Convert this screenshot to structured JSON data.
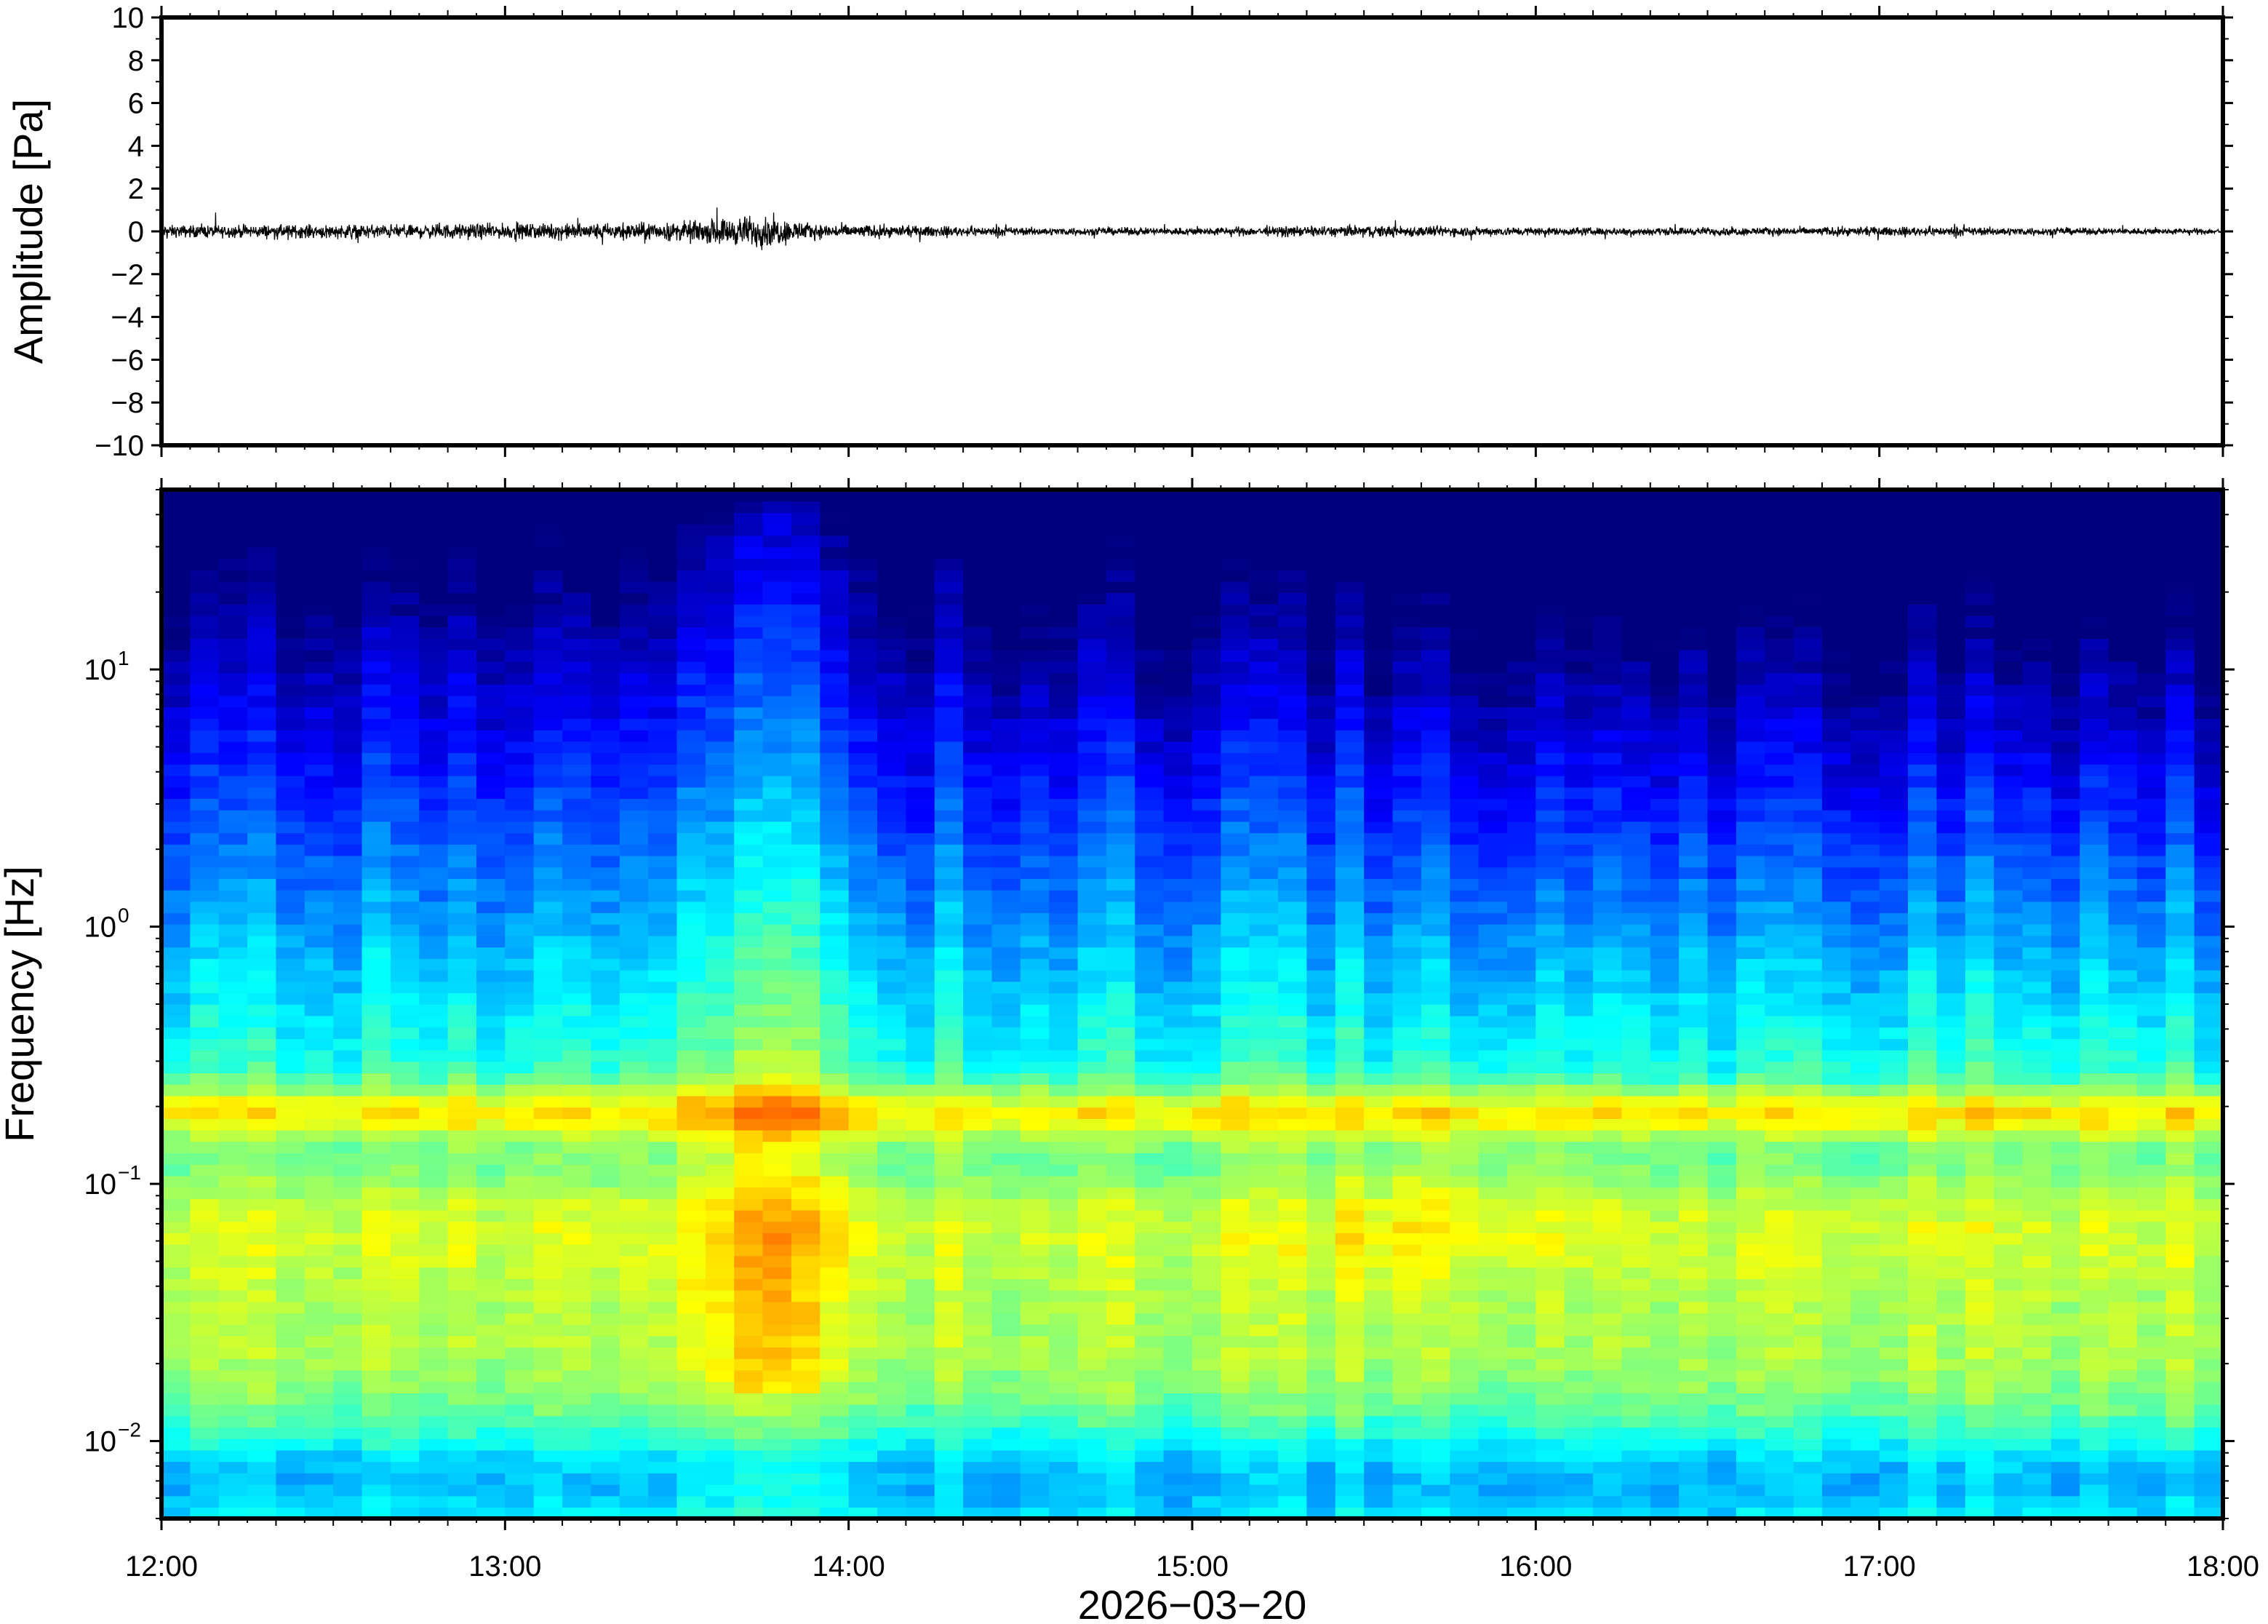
{
  "chart_data": [
    {
      "type": "line",
      "panel": "waveform",
      "ylabel": "Amplitude [Pa]",
      "ylim": [
        -10,
        10
      ],
      "yticks": [
        10,
        8,
        6,
        4,
        2,
        0,
        -2,
        -4,
        -6,
        -8,
        -10
      ],
      "ytick_labels": [
        "10",
        "8",
        "6",
        "4",
        "2",
        "0",
        "−2",
        "−4",
        "−6",
        "−8",
        "−10"
      ],
      "xlim": [
        "12:00",
        "18:00"
      ],
      "series": [
        {
          "color": "#000000",
          "envelope_hours": [
            12.0,
            12.5,
            13.0,
            13.3,
            13.5,
            13.65,
            13.75,
            13.9,
            14.2,
            14.6,
            15.0,
            15.5,
            15.9,
            16.3,
            16.8,
            17.2,
            17.6,
            18.0
          ],
          "envelope_pa": [
            0.4,
            0.45,
            0.5,
            0.55,
            0.6,
            0.9,
            1.1,
            0.5,
            0.35,
            0.25,
            0.25,
            0.4,
            0.3,
            0.25,
            0.28,
            0.3,
            0.22,
            0.2
          ]
        }
      ]
    },
    {
      "type": "heatmap",
      "panel": "spectrogram",
      "ylabel": "Frequency [Hz]",
      "xlabel": "2026−03−20",
      "y_scale": "log",
      "ylim_hz": [
        0.005,
        50
      ],
      "yticks": [
        0.01,
        0.1,
        1,
        10
      ],
      "ytick_base": [
        "10",
        "10",
        "10",
        "10"
      ],
      "ytick_exp": [
        "−2",
        "−1",
        "0",
        "1"
      ],
      "xticks": [
        "12:00",
        "13:00",
        "14:00",
        "15:00",
        "16:00",
        "17:00",
        "18:00"
      ],
      "colormap": "jet",
      "colormap_colors": [
        "#00007f",
        "#0000ff",
        "#007fff",
        "#00ffff",
        "#7fff7f",
        "#ffff00",
        "#ff7f00",
        "#ff0000",
        "#7f0000"
      ],
      "microseism_peak_hz": 0.19,
      "secondary_peak_hz": 0.07,
      "energetic_interval": [
        "13:35",
        "13:55"
      ]
    }
  ]
}
